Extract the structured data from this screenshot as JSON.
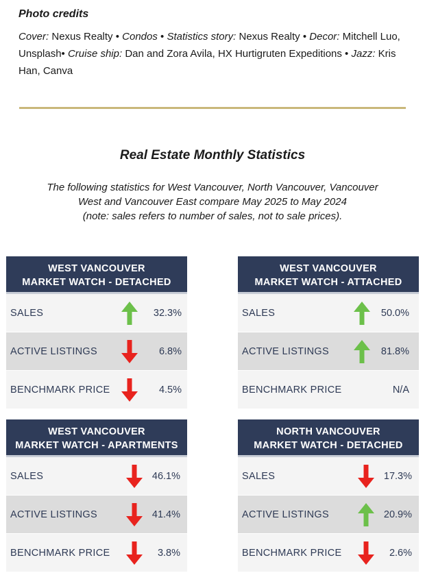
{
  "credits": {
    "heading": "Photo credits",
    "parts": [
      {
        "label": "Cover:",
        "text": " Nexus Realty • "
      },
      {
        "label": "Condos",
        "text": " • "
      },
      {
        "label": "Statistics story:",
        "text": " Nexus Realty • "
      },
      {
        "label": "Decor:",
        "text": " Mitchell Luo, Unsplash• "
      },
      {
        "label": "Cruise ship:",
        "text": " Dan and Zora Avila, HX Hurtigruten Expeditions • "
      },
      {
        "label": "Jazz:",
        "text": " Kris Han, Canva"
      }
    ]
  },
  "stats": {
    "title": "Real Estate Monthly Statistics",
    "desc_line1": "The following statistics for West Vancouver, North Vancouver, Vancouver",
    "desc_line2": "West and Vancouver East compare May 2025 to May 2024",
    "desc_line3": "(note: sales refers to number of sales, not to sale prices)."
  },
  "colors": {
    "header_bg": "#2f3c59",
    "rule": "#c9b77a",
    "arrow_up": "#6cc04a",
    "arrow_down": "#e8231e"
  },
  "cards": [
    {
      "title_line1": "WEST VANCOUVER",
      "title_line2": "MARKET WATCH - DETACHED",
      "rows": [
        {
          "label": "SALES",
          "value": "32.3%",
          "direction": "up"
        },
        {
          "label": "ACTIVE LISTINGS",
          "value": "6.8%",
          "direction": "down"
        },
        {
          "label": "BENCHMARK PRICE",
          "value": "4.5%",
          "direction": "down"
        }
      ]
    },
    {
      "title_line1": "WEST VANCOUVER",
      "title_line2": "MARKET WATCH - ATTACHED",
      "rows": [
        {
          "label": "SALES",
          "value": "50.0%",
          "direction": "up"
        },
        {
          "label": "ACTIVE LISTINGS",
          "value": "81.8%",
          "direction": "up"
        },
        {
          "label": "BENCHMARK PRICE",
          "value": "N/A",
          "direction": "none"
        }
      ]
    },
    {
      "title_line1": "WEST VANCOUVER",
      "title_line2": "MARKET WATCH - APARTMENTS",
      "rows": [
        {
          "label": "SALES",
          "value": "46.1%",
          "direction": "down"
        },
        {
          "label": "ACTIVE LISTINGS",
          "value": "41.4%",
          "direction": "down"
        },
        {
          "label": "BENCHMARK PRICE",
          "value": "3.8%",
          "direction": "down"
        }
      ]
    },
    {
      "title_line1": "NORTH VANCOUVER",
      "title_line2": "MARKET WATCH - DETACHED",
      "rows": [
        {
          "label": "SALES",
          "value": "17.3%",
          "direction": "down"
        },
        {
          "label": "ACTIVE LISTINGS",
          "value": "20.9%",
          "direction": "up"
        },
        {
          "label": "BENCHMARK PRICE",
          "value": "2.6%",
          "direction": "down"
        }
      ]
    }
  ]
}
